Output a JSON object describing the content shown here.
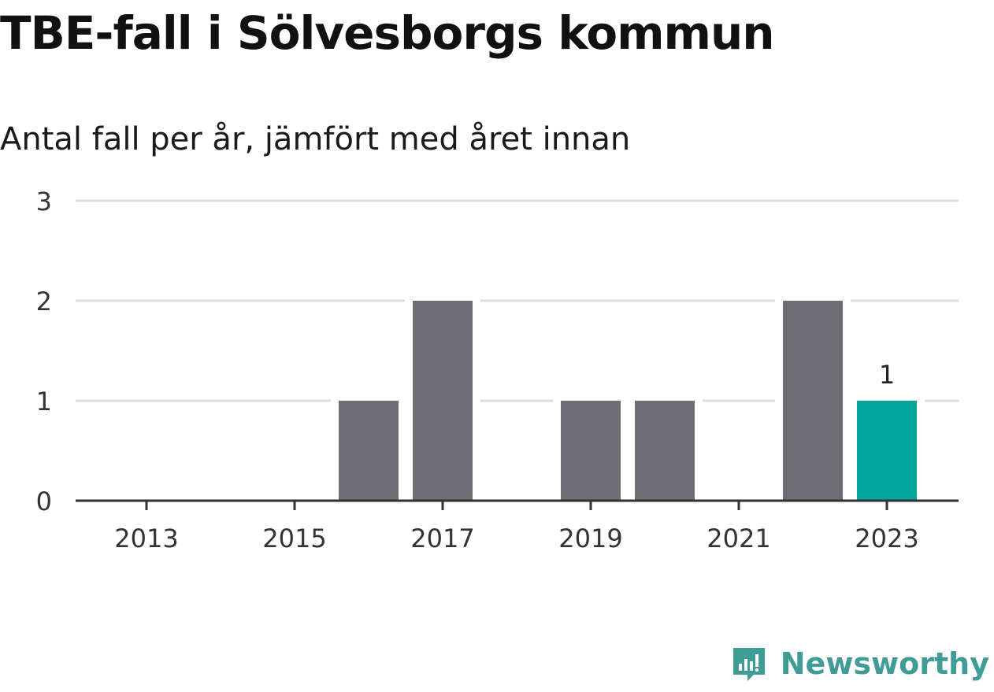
{
  "chart_data": {
    "type": "bar",
    "title": "TBE-fall i Sölvesborgs kommun",
    "subtitle": "Antal fall per år, jämfört med året innan",
    "x": [
      2013,
      2014,
      2015,
      2016,
      2017,
      2018,
      2019,
      2020,
      2021,
      2022,
      2023
    ],
    "values": [
      0,
      0,
      0,
      1,
      2,
      0,
      1,
      1,
      0,
      2,
      1
    ],
    "x_tick_labels": [
      "2013",
      "2015",
      "2017",
      "2019",
      "2021",
      "2023"
    ],
    "x_tick_values": [
      2013,
      2015,
      2017,
      2019,
      2021,
      2023
    ],
    "y_ticks": [
      0,
      1,
      2,
      3
    ],
    "ylim": [
      0,
      3
    ],
    "grid": true,
    "highlight_x": 2023,
    "highlight_label": "1",
    "colors": {
      "bar": "#6e6d73",
      "highlight": "#00a59a",
      "grid": "#dddddd",
      "axis": "#333333"
    }
  },
  "brand": {
    "name": "Newsworthy",
    "icon": "newsworthy-logo-icon",
    "color": "#3f9c96"
  }
}
